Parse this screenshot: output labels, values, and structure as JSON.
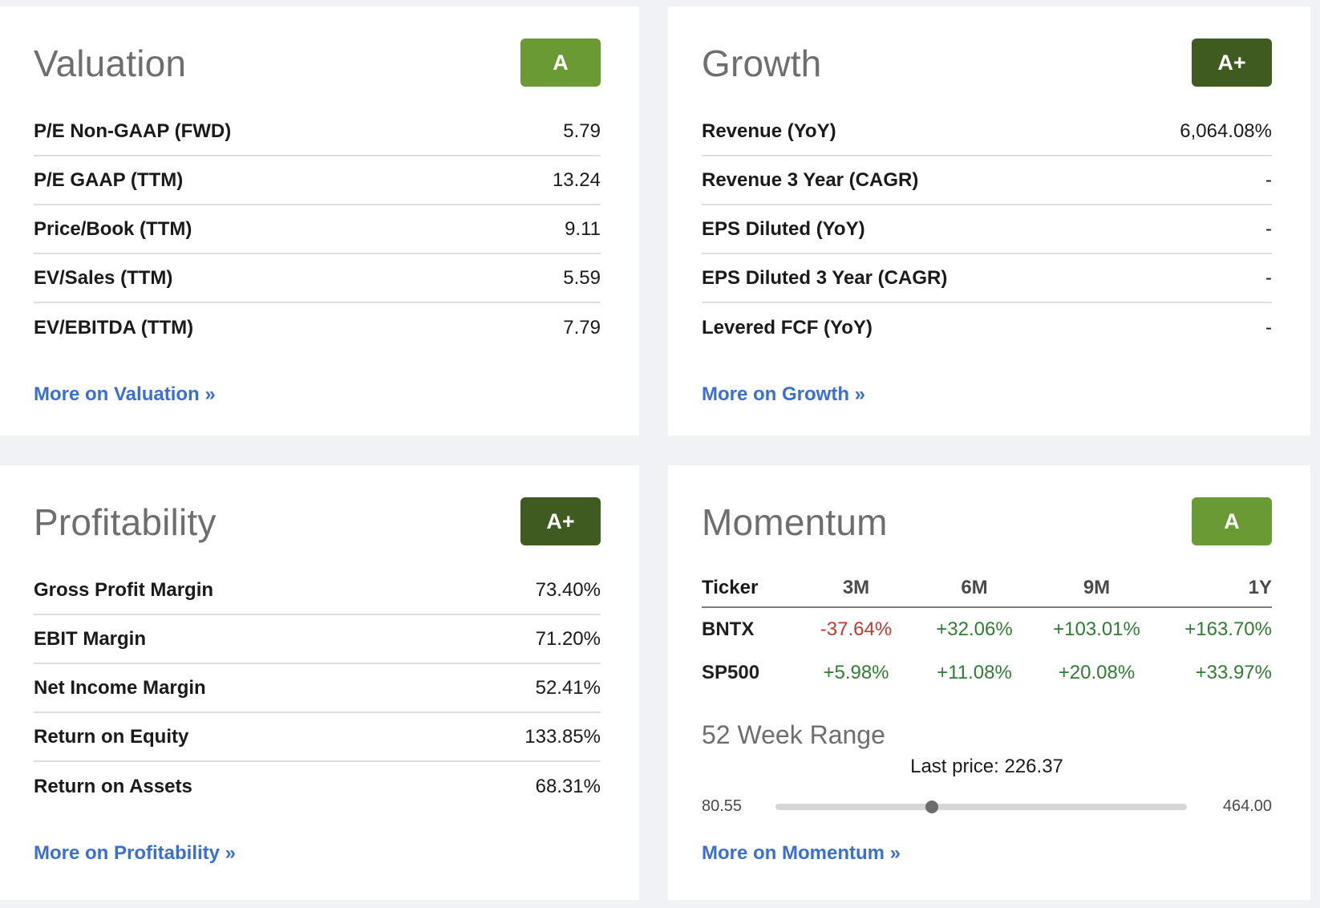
{
  "valuation": {
    "title": "Valuation",
    "grade": "A",
    "grade_color": "#6a9a34",
    "rows": [
      {
        "label": "P/E Non-GAAP (FWD)",
        "value": "5.79"
      },
      {
        "label": "P/E GAAP (TTM)",
        "value": "13.24"
      },
      {
        "label": "Price/Book (TTM)",
        "value": "9.11"
      },
      {
        "label": "EV/Sales (TTM)",
        "value": "5.59"
      },
      {
        "label": "EV/EBITDA (TTM)",
        "value": "7.79"
      }
    ],
    "more_link": "More on Valuation »"
  },
  "growth": {
    "title": "Growth",
    "grade": "A+",
    "grade_color": "#3f5b20",
    "rows": [
      {
        "label": "Revenue (YoY)",
        "value": "6,064.08%"
      },
      {
        "label": "Revenue 3 Year (CAGR)",
        "value": "-"
      },
      {
        "label": "EPS Diluted (YoY)",
        "value": "-"
      },
      {
        "label": "EPS Diluted 3 Year (CAGR)",
        "value": "-"
      },
      {
        "label": "Levered FCF (YoY)",
        "value": "-"
      }
    ],
    "more_link": "More on Growth »"
  },
  "profitability": {
    "title": "Profitability",
    "grade": "A+",
    "grade_color": "#3f5b20",
    "rows": [
      {
        "label": "Gross Profit Margin",
        "value": "73.40%"
      },
      {
        "label": "EBIT Margin",
        "value": "71.20%"
      },
      {
        "label": "Net Income Margin",
        "value": "52.41%"
      },
      {
        "label": "Return on Equity",
        "value": "133.85%"
      },
      {
        "label": "Return on Assets",
        "value": "68.31%"
      }
    ],
    "more_link": "More on Profitability »"
  },
  "momentum": {
    "title": "Momentum",
    "grade": "A",
    "grade_color": "#6a9a34",
    "table": {
      "headers": [
        "Ticker",
        "3M",
        "6M",
        "9M",
        "1Y"
      ],
      "rows": [
        {
          "ticker": "BNTX",
          "values": [
            "-37.64%",
            "+32.06%",
            "+103.01%",
            "+163.70%"
          ]
        },
        {
          "ticker": "SP500",
          "values": [
            "+5.98%",
            "+11.08%",
            "+20.08%",
            "+33.97%"
          ]
        }
      ]
    },
    "range_title": "52 Week Range",
    "last_price_label": "Last price: 226.37",
    "range_low": "80.55",
    "range_high": "464.00",
    "last_price_value": 226.37,
    "more_link": "More on Momentum »"
  },
  "colors": {
    "positive": "#2e7d32",
    "negative": "#c0392b",
    "link": "#3a6fd2"
  }
}
